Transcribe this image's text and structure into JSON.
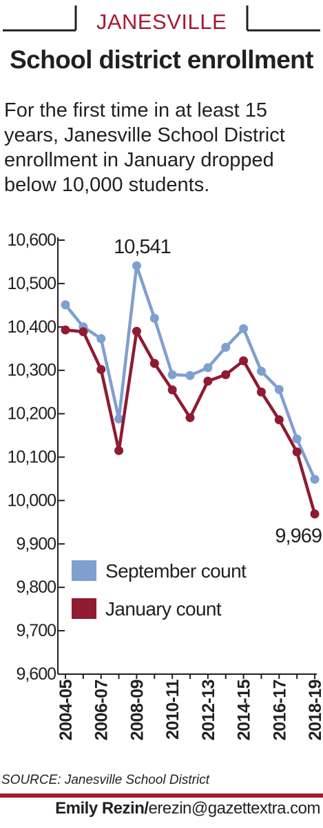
{
  "header": {
    "kicker": "JANESVILLE",
    "title": "School district enrollment",
    "intro": "For the first time in at least 15 years, Janesville School District enrollment in January dropped below 10,000 students."
  },
  "colors": {
    "september": "#7f9fcf",
    "january": "#8f1b33",
    "accent": "#a6192e"
  },
  "chart_data": {
    "type": "line",
    "x": [
      "2004-05",
      "2005-06",
      "2006-07",
      "2007-08",
      "2008-09",
      "2009-10",
      "2010-11",
      "2011-12",
      "2012-13",
      "2013-14",
      "2014-15",
      "2015-16",
      "2016-17",
      "2017-18",
      "2018-19"
    ],
    "x_tick_labels": [
      "2004-05",
      "2006-07",
      "2008-09",
      "2010-11",
      "2012-13",
      "2014-15",
      "2016-17",
      "2018-19"
    ],
    "ylim": [
      9600,
      10600
    ],
    "y_ticks": [
      10600,
      10500,
      10400,
      10300,
      10200,
      10100,
      10000,
      9900,
      9800,
      9700,
      9600
    ],
    "y_tick_labels": [
      "10,600",
      "10,500",
      "10,400",
      "10,300",
      "10,200",
      "10,100",
      "10,000",
      "9,900",
      "9,800",
      "9,700",
      "9,600"
    ],
    "series": [
      {
        "name": "September count",
        "values": [
          10451,
          10400,
          10373,
          10188,
          10541,
          10420,
          10290,
          10288,
          10306,
          10353,
          10396,
          10298,
          10256,
          10142,
          10049
        ]
      },
      {
        "name": "January count",
        "values": [
          10393,
          10389,
          10302,
          10115,
          10390,
          10316,
          10255,
          10191,
          10275,
          10290,
          10322,
          10250,
          10186,
          10112,
          9969
        ]
      }
    ],
    "annotations": [
      {
        "text": "10,541",
        "series": 0,
        "index": 4
      },
      {
        "text": "9,969",
        "series": 1,
        "index": 14
      }
    ],
    "legend_position": "lower-left",
    "grid": false
  },
  "footer": {
    "source": "SOURCE: Janesville School District",
    "credit_name": "Emily Rezin/",
    "credit_email": "erezin@gazettextra.com"
  }
}
